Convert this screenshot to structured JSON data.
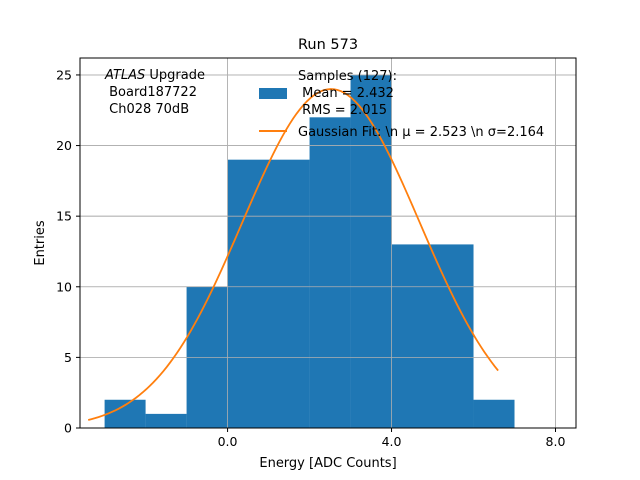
{
  "chart_data": {
    "type": "bar",
    "title": "Run 573",
    "xlabel": "Energy [ADC Counts]",
    "ylabel": "Entries",
    "xlim": [
      -3.6,
      8.5
    ],
    "ylim": [
      0,
      26.2
    ],
    "xticks": [
      0.0,
      4.0,
      8.0
    ],
    "xtick_labels": [
      "0.0",
      "4.0",
      "8.0"
    ],
    "yticks": [
      0,
      5,
      10,
      15,
      20,
      25
    ],
    "ytick_labels": [
      "0",
      "5",
      "10",
      "15",
      "20",
      "25"
    ],
    "grid": true,
    "bins": [
      {
        "x0": -3.0,
        "x1": -2.0,
        "value": 2
      },
      {
        "x0": -2.0,
        "x1": -1.0,
        "value": 1
      },
      {
        "x0": -1.0,
        "x1": 0.0,
        "value": 10
      },
      {
        "x0": 0.0,
        "x1": 2.0,
        "value": 19
      },
      {
        "x0": 2.0,
        "x1": 3.0,
        "value": 22
      },
      {
        "x0": 3.0,
        "x1": 4.0,
        "value": 25
      },
      {
        "x0": 4.0,
        "x1": 6.0,
        "value": 13
      },
      {
        "x0": 6.0,
        "x1": 7.0,
        "value": 2
      }
    ],
    "fit": {
      "amplitude": 24.0,
      "mu": 2.523,
      "sigma": 2.164,
      "x_range": [
        -3.4,
        6.6
      ]
    },
    "colors": {
      "histogram": "#1f77b4",
      "fit": "#ff7f0e",
      "grid": "#b0b0b0"
    },
    "legend": {
      "placement": "top-center",
      "hist_label_line1": "Samples (127):",
      "hist_label_line2": " Mean = 2.432",
      "hist_label_line3": " RMS = 2.015",
      "fit_label": "Gaussian Fit: \\n μ = 2.523 \\n σ=2.164"
    },
    "annotation": {
      "italic": "ATLAS",
      "rest": " Upgrade",
      "line2": " Board187722",
      "line3": " Ch028 70dB"
    }
  }
}
